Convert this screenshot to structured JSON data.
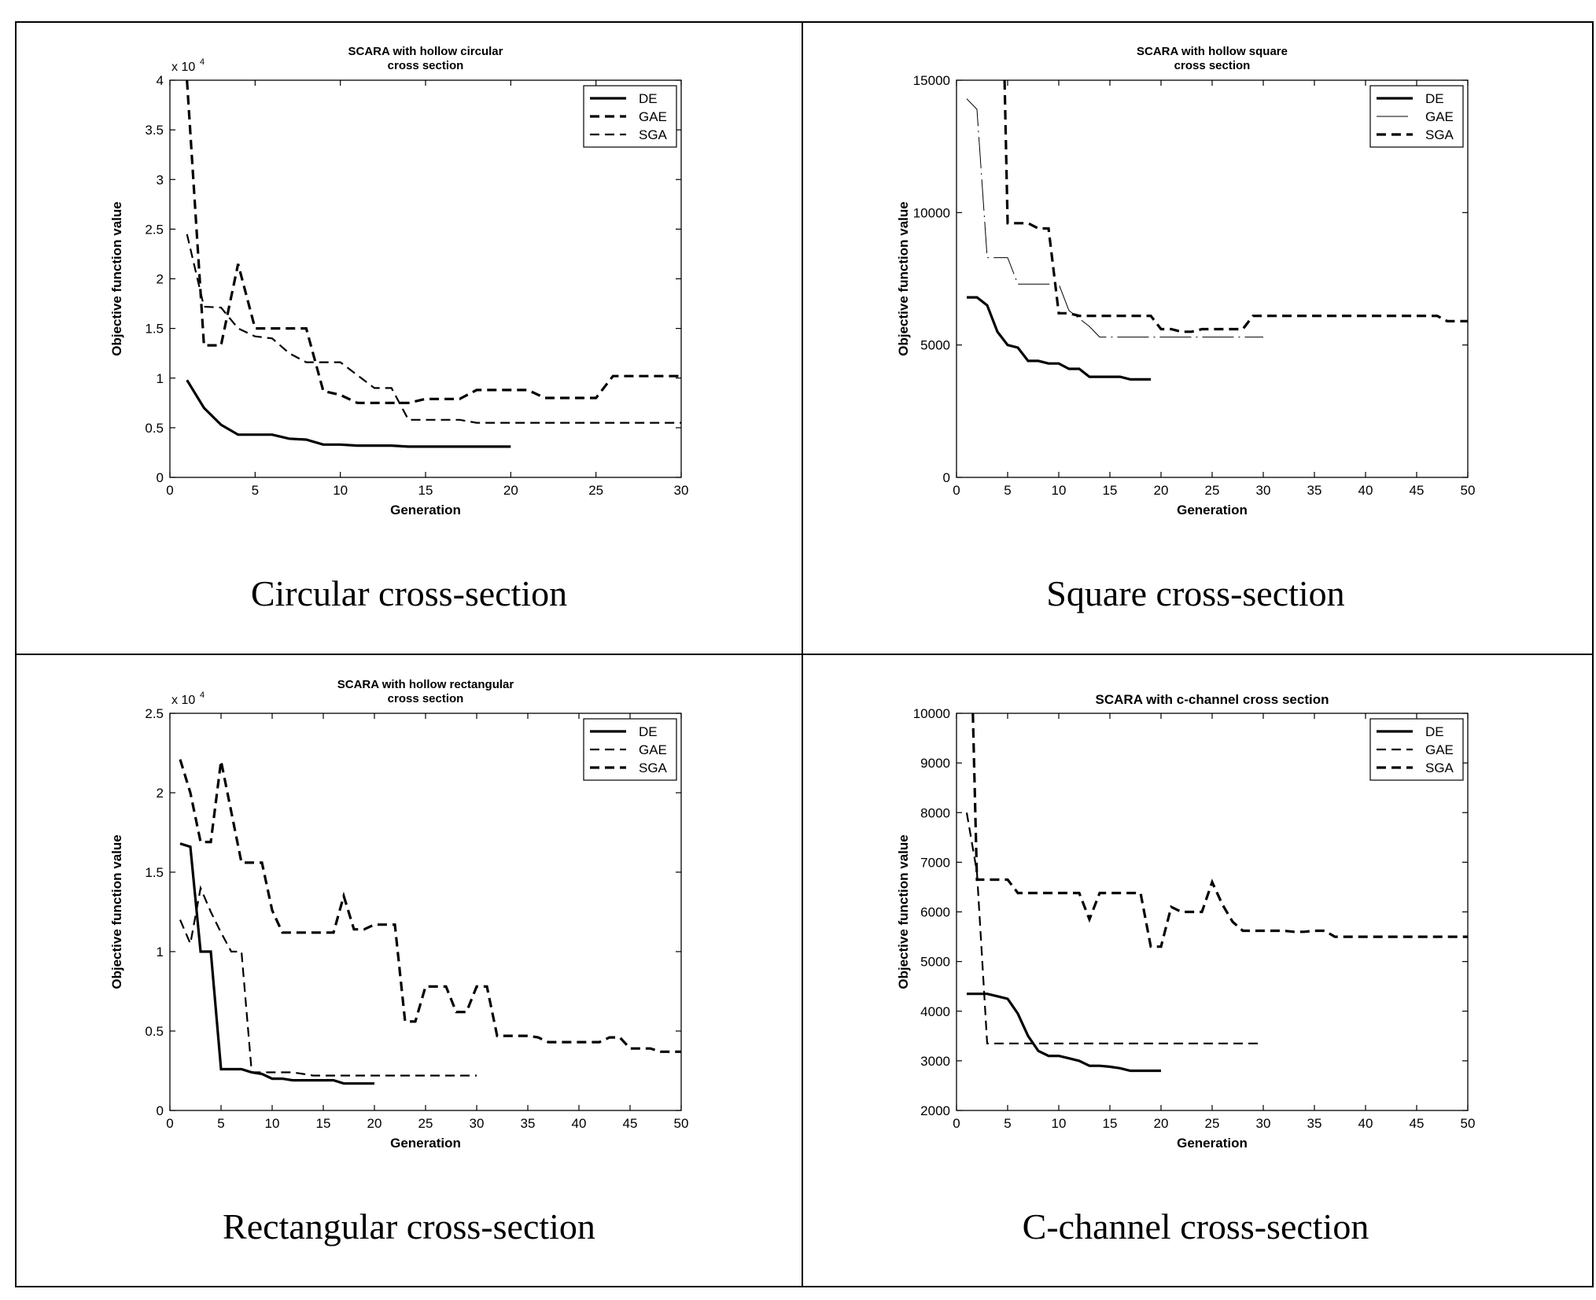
{
  "panels": [
    {
      "caption": "Circular cross-section",
      "chart": {
        "type": "line",
        "title": [
          "SCARA with hollow circular",
          "cross section"
        ],
        "xlabel": "Generation",
        "ylabel": "Objective function value",
        "exponent": "x 10",
        "exponent_power": "4",
        "xlim": [
          0,
          30
        ],
        "ylim": [
          0,
          40000
        ],
        "xticks": [
          0,
          5,
          10,
          15,
          20,
          25,
          30
        ],
        "xtick_labels": [
          "0",
          "5",
          "10",
          "15",
          "20",
          "25",
          "30"
        ],
        "yticks": [
          0,
          5000,
          10000,
          15000,
          20000,
          25000,
          30000,
          35000,
          40000
        ],
        "ytick_labels": [
          "0",
          "0.5",
          "1",
          "1.5",
          "2",
          "2.5",
          "3",
          "3.5",
          "4"
        ],
        "legend_position": "top-right",
        "series": [
          {
            "name": "DE",
            "style": "solid-bold",
            "x": [
              1,
              2,
              3,
              4,
              5,
              6,
              7,
              8,
              9,
              10,
              11,
              12,
              13,
              14,
              15,
              16,
              17,
              18,
              19,
              20
            ],
            "y": [
              9800,
              7000,
              5300,
              4300,
              4300,
              4300,
              3900,
              3800,
              3300,
              3300,
              3200,
              3200,
              3200,
              3100,
              3100,
              3100,
              3100,
              3100,
              3100,
              3100
            ]
          },
          {
            "name": "GAE",
            "style": "dashed-bold",
            "x": [
              1,
              2,
              3,
              4,
              5,
              6,
              7,
              8,
              9,
              10,
              11,
              12,
              13,
              14,
              15,
              16,
              17,
              18,
              19,
              20,
              21,
              22,
              23,
              24,
              25,
              26,
              27,
              28,
              29,
              30
            ],
            "y": [
              40000,
              13300,
              13300,
              21500,
              15000,
              15000,
              15000,
              15000,
              8700,
              8300,
              7500,
              7500,
              7500,
              7500,
              7900,
              7900,
              7900,
              8800,
              8800,
              8800,
              8800,
              8000,
              8000,
              8000,
              8000,
              10200,
              10200,
              10200,
              10200,
              10200
            ]
          },
          {
            "name": "SGA",
            "style": "dashed",
            "x": [
              1,
              2,
              3,
              4,
              5,
              6,
              7,
              8,
              9,
              10,
              11,
              12,
              13,
              14,
              15,
              16,
              17,
              18,
              19,
              20,
              21,
              22,
              23,
              24,
              25,
              26,
              27,
              28,
              29,
              30
            ],
            "y": [
              24500,
              17200,
              17100,
              15000,
              14200,
              14000,
              12500,
              11600,
              11600,
              11600,
              10300,
              9000,
              9000,
              5800,
              5800,
              5800,
              5800,
              5500,
              5500,
              5500,
              5500,
              5500,
              5500,
              5500,
              5500,
              5500,
              5500,
              5500,
              5500,
              5500
            ]
          }
        ]
      }
    },
    {
      "caption": "Square cross-section",
      "chart": {
        "type": "line",
        "title": [
          "SCARA with hollow square",
          "cross section"
        ],
        "xlabel": "Generation",
        "ylabel": "Objective function value",
        "exponent": "",
        "exponent_power": "",
        "xlim": [
          0,
          50
        ],
        "ylim": [
          0,
          15000
        ],
        "xticks": [
          0,
          5,
          10,
          15,
          20,
          25,
          30,
          35,
          40,
          45,
          50
        ],
        "xtick_labels": [
          "0",
          "5",
          "10",
          "15",
          "20",
          "25",
          "30",
          "35",
          "40",
          "45",
          "50"
        ],
        "yticks": [
          0,
          5000,
          10000,
          15000
        ],
        "ytick_labels": [
          "0",
          "5000",
          "10000",
          "15000"
        ],
        "legend_position": "top-right",
        "series": [
          {
            "name": "DE",
            "style": "solid-bold",
            "x": [
              1,
              2,
              3,
              4,
              5,
              6,
              7,
              8,
              9,
              10,
              11,
              12,
              13,
              14,
              15,
              16,
              17,
              18,
              19
            ],
            "y": [
              6800,
              6800,
              6500,
              5500,
              5000,
              4900,
              4400,
              4400,
              4300,
              4300,
              4100,
              4100,
              3800,
              3800,
              3800,
              3800,
              3700,
              3700,
              3700
            ]
          },
          {
            "name": "GAE",
            "style": "thin-dashdot",
            "x": [
              1,
              2,
              3,
              4,
              5,
              6,
              7,
              8,
              9,
              10,
              11,
              12,
              13,
              14,
              15,
              20,
              25,
              30
            ],
            "y": [
              14300,
              13900,
              8300,
              8300,
              8300,
              7300,
              7300,
              7300,
              7300,
              7300,
              6300,
              6000,
              5700,
              5300,
              5300,
              5300,
              5300,
              5300
            ]
          },
          {
            "name": "SGA",
            "style": "dashed-bold",
            "x": [
              4.7,
              5,
              6,
              7,
              8,
              9,
              10,
              11,
              12,
              13,
              14,
              15,
              16,
              17,
              18,
              19,
              20,
              21,
              22,
              23,
              24,
              25,
              26,
              27,
              28,
              29,
              30,
              35,
              40,
              45,
              47,
              48,
              50
            ],
            "y": [
              15000,
              9600,
              9600,
              9600,
              9400,
              9400,
              6200,
              6200,
              6100,
              6100,
              6100,
              6100,
              6100,
              6100,
              6100,
              6100,
              5600,
              5600,
              5500,
              5500,
              5600,
              5600,
              5600,
              5600,
              5600,
              6100,
              6100,
              6100,
              6100,
              6100,
              6100,
              5900,
              5900
            ]
          }
        ]
      }
    },
    {
      "caption": "Rectangular cross-section",
      "chart": {
        "type": "line",
        "title": [
          "SCARA with hollow rectangular",
          "cross section"
        ],
        "xlabel": "Generation",
        "ylabel": "Objective function value",
        "exponent": "x 10",
        "exponent_power": "4",
        "xlim": [
          0,
          50
        ],
        "ylim": [
          0,
          25000
        ],
        "xticks": [
          0,
          5,
          10,
          15,
          20,
          25,
          30,
          35,
          40,
          45,
          50
        ],
        "xtick_labels": [
          "0",
          "5",
          "10",
          "15",
          "20",
          "25",
          "30",
          "35",
          "40",
          "45",
          "50"
        ],
        "yticks": [
          0,
          5000,
          10000,
          15000,
          20000,
          25000
        ],
        "ytick_labels": [
          "0",
          "0.5",
          "1",
          "1.5",
          "2",
          "2.5"
        ],
        "legend_position": "top-right",
        "series": [
          {
            "name": "DE",
            "style": "solid-bold",
            "x": [
              1,
              2,
              3,
              4,
              5,
              6,
              7,
              8,
              9,
              10,
              11,
              12,
              13,
              14,
              15,
              16,
              17,
              18,
              19,
              20
            ],
            "y": [
              16800,
              16600,
              10000,
              10000,
              2600,
              2600,
              2600,
              2400,
              2300,
              2000,
              2000,
              1900,
              1900,
              1900,
              1900,
              1900,
              1700,
              1700,
              1700,
              1700
            ]
          },
          {
            "name": "GAE",
            "style": "dashed",
            "x": [
              1,
              2,
              3,
              4,
              5,
              6,
              7,
              8,
              9,
              10,
              11,
              12,
              13,
              14,
              15,
              16,
              17,
              18,
              19,
              20,
              21,
              22,
              23,
              24,
              25,
              26,
              27,
              28,
              29,
              30
            ],
            "y": [
              12000,
              10500,
              14000,
              12500,
              11200,
              10000,
              10000,
              2400,
              2400,
              2400,
              2400,
              2400,
              2300,
              2200,
              2200,
              2200,
              2200,
              2200,
              2200,
              2200,
              2200,
              2200,
              2200,
              2200,
              2200,
              2200,
              2200,
              2200,
              2200,
              2200
            ]
          },
          {
            "name": "SGA",
            "style": "dashed-bold",
            "x": [
              1,
              2,
              3,
              4,
              5,
              6,
              7,
              8,
              9,
              10,
              11,
              12,
              13,
              14,
              15,
              16,
              17,
              18,
              19,
              20,
              21,
              22,
              23,
              24,
              25,
              26,
              27,
              28,
              29,
              30,
              31,
              32,
              33,
              34,
              35,
              36,
              37,
              38,
              39,
              40,
              41,
              42,
              43,
              44,
              45,
              46,
              47,
              48,
              49,
              50
            ],
            "y": [
              22100,
              20000,
              16900,
              16900,
              22000,
              18800,
              15600,
              15600,
              15600,
              12600,
              11200,
              11200,
              11200,
              11200,
              11200,
              11200,
              13500,
              11400,
              11400,
              11700,
              11700,
              11700,
              5600,
              5600,
              7800,
              7800,
              7800,
              6200,
              6200,
              7800,
              7800,
              4700,
              4700,
              4700,
              4700,
              4600,
              4300,
              4300,
              4300,
              4300,
              4300,
              4300,
              4600,
              4600,
              3900,
              3900,
              3900,
              3700,
              3700,
              3700
            ]
          }
        ]
      }
    },
    {
      "caption": "C-channel cross-section",
      "chart": {
        "type": "line",
        "title": [
          "SCARA with c-channel cross section"
        ],
        "xlabel": "Generation",
        "ylabel": "Objective function value",
        "exponent": "",
        "exponent_power": "",
        "xlim": [
          0,
          50
        ],
        "ylim": [
          2000,
          10000
        ],
        "xticks": [
          0,
          5,
          10,
          15,
          20,
          25,
          30,
          35,
          40,
          45,
          50
        ],
        "xtick_labels": [
          "0",
          "5",
          "10",
          "15",
          "20",
          "25",
          "30",
          "35",
          "40",
          "45",
          "50"
        ],
        "yticks": [
          2000,
          3000,
          4000,
          5000,
          6000,
          7000,
          8000,
          9000,
          10000
        ],
        "ytick_labels": [
          "2000",
          "3000",
          "4000",
          "5000",
          "6000",
          "7000",
          "8000",
          "9000",
          "10000"
        ],
        "legend_position": "top-right",
        "series": [
          {
            "name": "DE",
            "style": "solid-bold",
            "x": [
              1,
              2,
              3,
              4,
              5,
              6,
              7,
              8,
              9,
              10,
              11,
              12,
              13,
              14,
              15,
              16,
              17,
              18,
              19,
              20
            ],
            "y": [
              4350,
              4350,
              4350,
              4300,
              4250,
              3950,
              3500,
              3200,
              3100,
              3100,
              3050,
              3000,
              2900,
              2900,
              2880,
              2850,
              2800,
              2800,
              2800,
              2800
            ]
          },
          {
            "name": "GAE",
            "style": "dashed",
            "x": [
              1,
              2,
              3,
              4,
              5,
              6,
              7,
              8,
              9,
              10,
              15,
              20,
              25,
              30
            ],
            "y": [
              8000,
              6800,
              3350,
              3350,
              3350,
              3350,
              3350,
              3350,
              3350,
              3350,
              3350,
              3350,
              3350,
              3350
            ]
          },
          {
            "name": "SGA",
            "style": "dashed-bold",
            "x": [
              1.6,
              2,
              3,
              4,
              5,
              6,
              7,
              8,
              9,
              10,
              11,
              12,
              13,
              14,
              15,
              16,
              17,
              18,
              19,
              20,
              21,
              22,
              23,
              24,
              25,
              26,
              27,
              28,
              29,
              30,
              31,
              32,
              33,
              34,
              35,
              36,
              37,
              38,
              39,
              40,
              45,
              50
            ],
            "y": [
              10000,
              6650,
              6650,
              6650,
              6650,
              6380,
              6380,
              6380,
              6380,
              6380,
              6380,
              6380,
              5850,
              6380,
              6380,
              6380,
              6380,
              6380,
              5300,
              5300,
              6100,
              6000,
              6000,
              6000,
              6600,
              6150,
              5800,
              5620,
              5620,
              5620,
              5620,
              5620,
              5600,
              5600,
              5620,
              5620,
              5500,
              5500,
              5500,
              5500,
              5500,
              5500
            ]
          }
        ]
      }
    }
  ]
}
